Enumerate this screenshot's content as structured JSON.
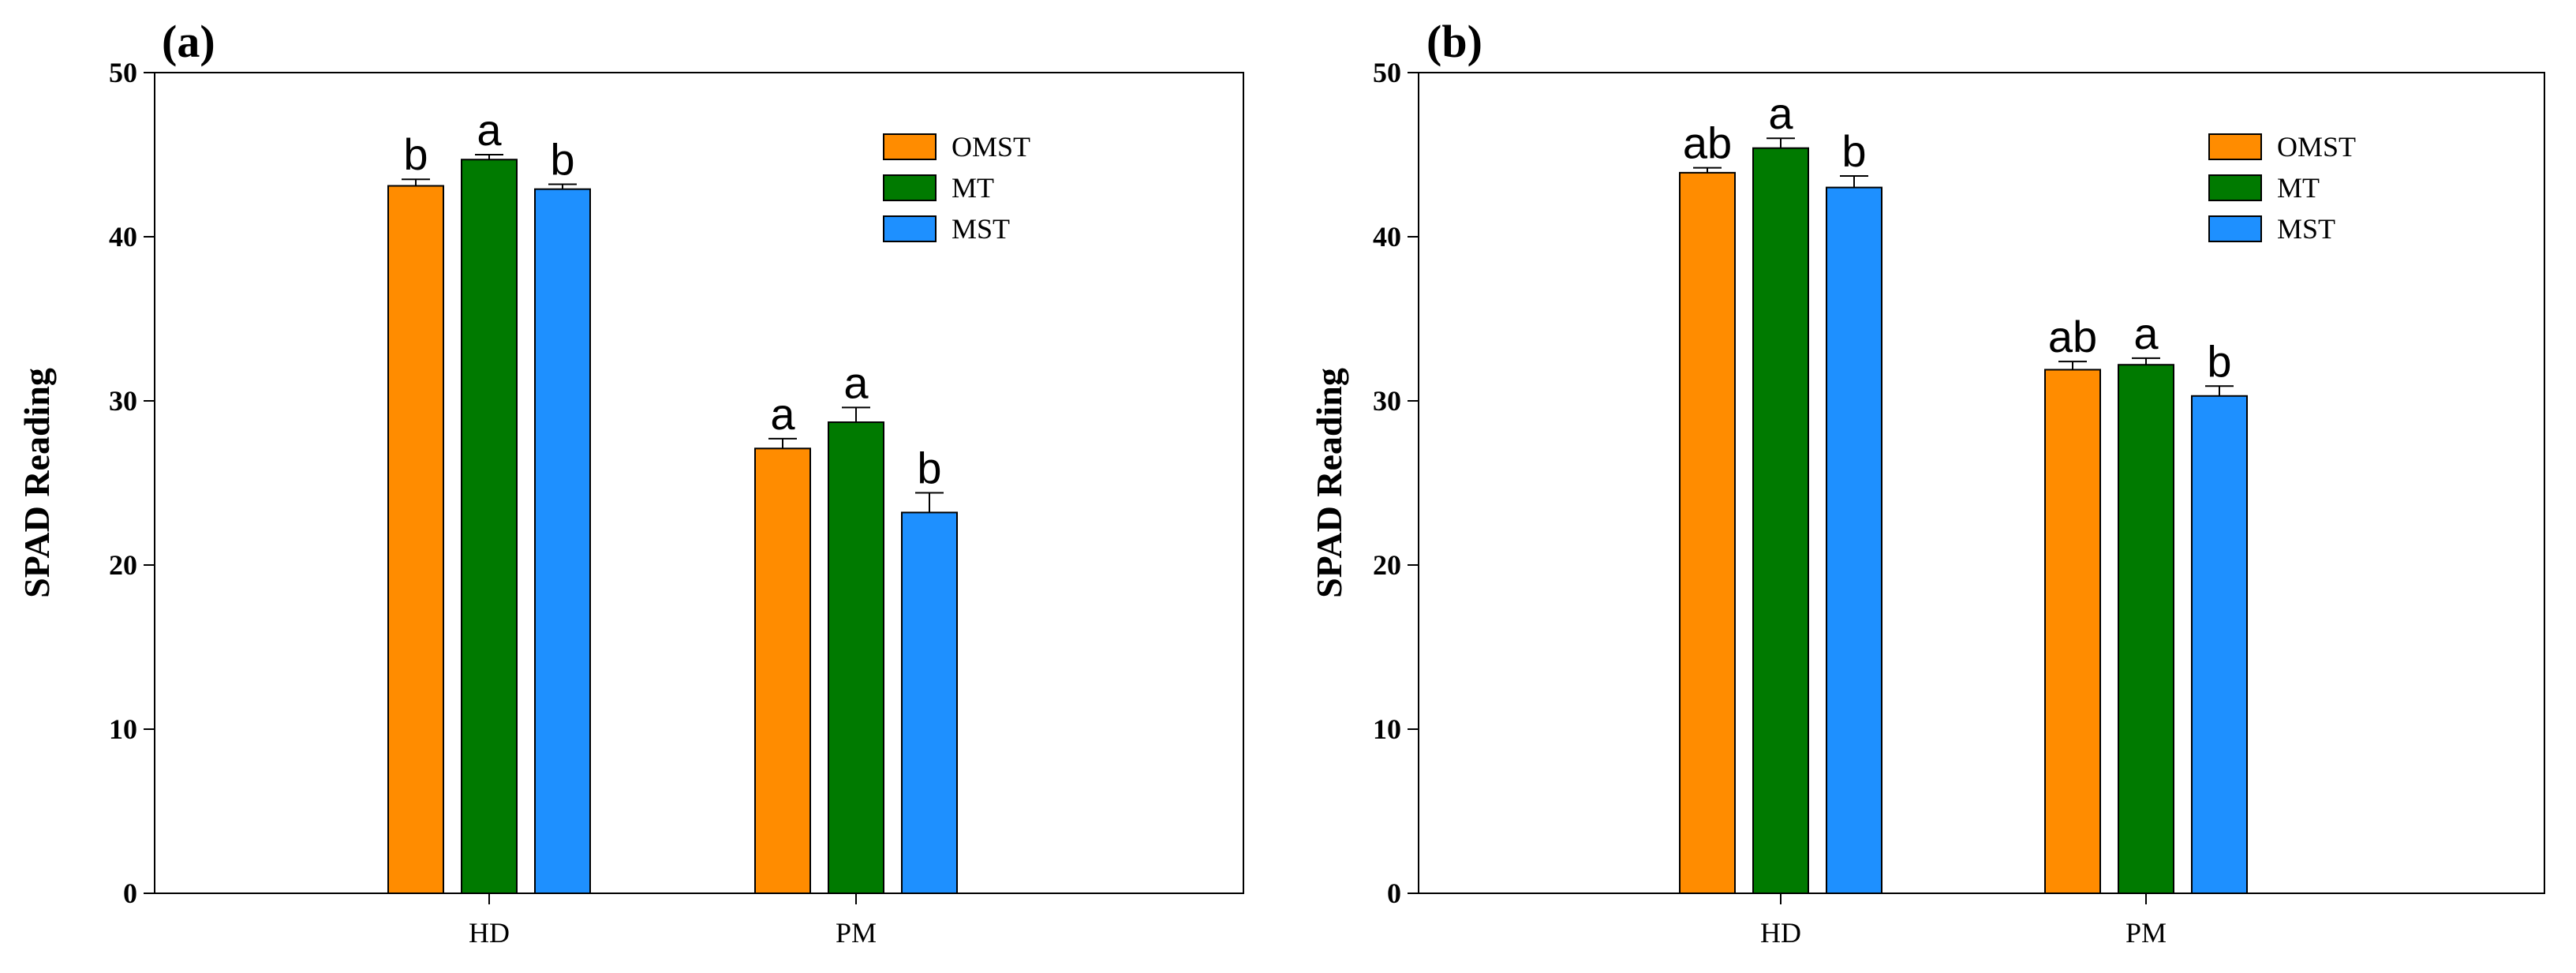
{
  "colors": {
    "OMST": "#ff8c00",
    "MT": "#007a00",
    "MST": "#1e90ff",
    "axis": "#000000"
  },
  "chart_data": [
    {
      "panel": "(a)",
      "type": "bar",
      "ylabel": "SPAD Reading",
      "xlabel": "",
      "ylim": [
        0,
        50
      ],
      "yticks": [
        "0",
        "10",
        "20",
        "30",
        "40",
        "50"
      ],
      "categories": [
        "HD",
        "PM"
      ],
      "legend_position": "top-right",
      "series": [
        {
          "name": "OMST",
          "values": [
            43.1,
            27.1
          ],
          "errors": [
            0.4,
            0.6
          ],
          "letters": [
            "b",
            "a"
          ]
        },
        {
          "name": "MT",
          "values": [
            44.7,
            28.7
          ],
          "errors": [
            0.3,
            0.9
          ],
          "letters": [
            "a",
            "a"
          ]
        },
        {
          "name": "MST",
          "values": [
            42.9,
            23.2
          ],
          "errors": [
            0.3,
            1.2
          ],
          "letters": [
            "b",
            "b"
          ]
        }
      ]
    },
    {
      "panel": "(b)",
      "type": "bar",
      "ylabel": "SPAD Reading",
      "xlabel": "",
      "ylim": [
        0,
        50
      ],
      "yticks": [
        "0",
        "10",
        "20",
        "30",
        "40",
        "50"
      ],
      "categories": [
        "HD",
        "PM"
      ],
      "legend_position": "top-right",
      "series": [
        {
          "name": "OMST",
          "values": [
            43.9,
            31.9
          ],
          "errors": [
            0.3,
            0.5
          ],
          "letters": [
            "ab",
            "ab"
          ]
        },
        {
          "name": "MT",
          "values": [
            45.4,
            32.2
          ],
          "errors": [
            0.6,
            0.4
          ],
          "letters": [
            "a",
            "a"
          ]
        },
        {
          "name": "MST",
          "values": [
            43.0,
            30.3
          ],
          "errors": [
            0.7,
            0.6
          ],
          "letters": [
            "b",
            "b"
          ]
        }
      ]
    }
  ]
}
